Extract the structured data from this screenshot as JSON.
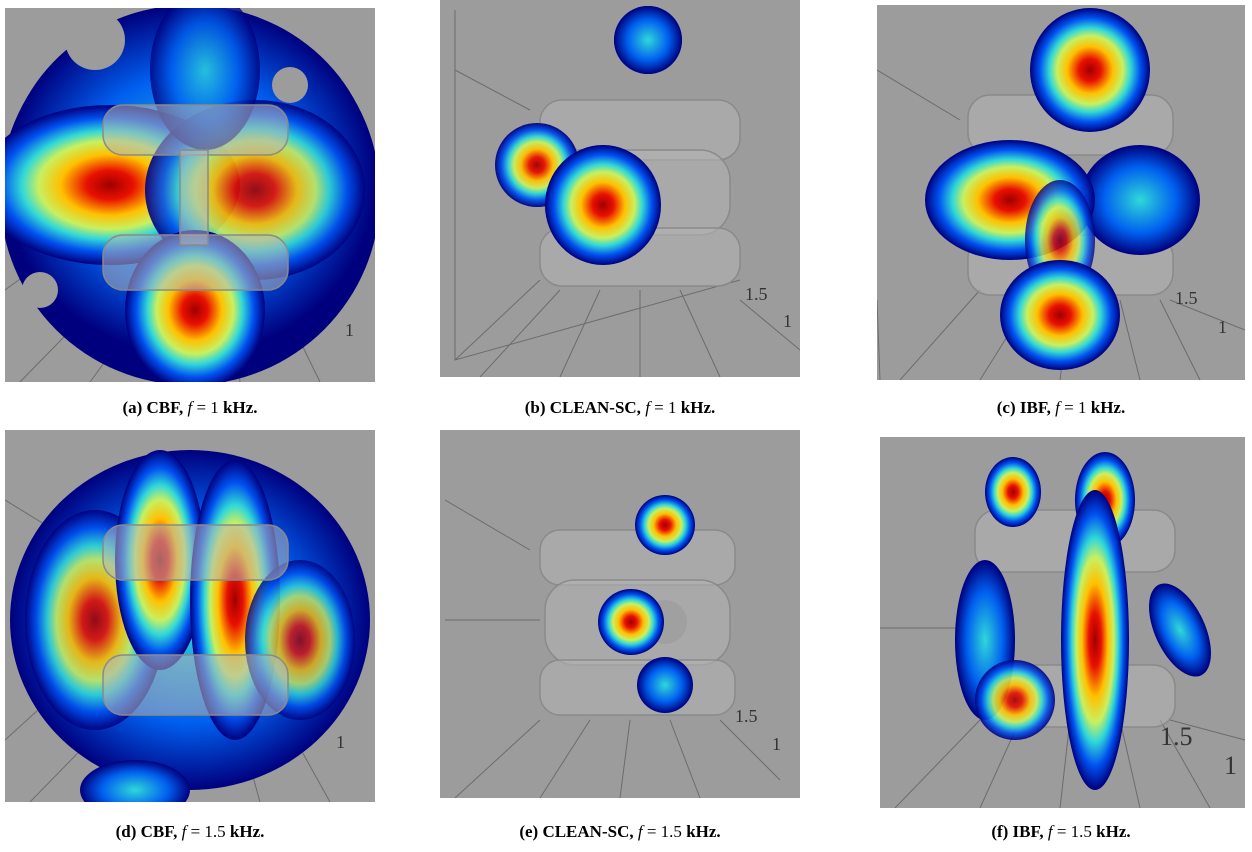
{
  "panels": [
    {
      "label": "(a) CBF,",
      "symbol": "f",
      "equals": "= 1",
      "unit": "kHz.",
      "axis_labels": [
        "1"
      ]
    },
    {
      "label": "(b) CLEAN-SC,",
      "symbol": "f",
      "equals": "= 1",
      "unit": "kHz.",
      "axis_labels": [
        "1.5",
        "1"
      ]
    },
    {
      "label": "(c) IBF,",
      "symbol": "f",
      "equals": "= 1",
      "unit": "kHz.",
      "axis_labels": [
        "1.5",
        "1"
      ]
    },
    {
      "label": "(d) CBF,",
      "symbol": "f",
      "equals": "= 1.5",
      "unit": "kHz.",
      "axis_labels": [
        "1"
      ]
    },
    {
      "label": "(e) CLEAN-SC,",
      "symbol": "f",
      "equals": "= 1.5",
      "unit": "kHz.",
      "axis_labels": [
        "1.5",
        "1"
      ]
    },
    {
      "label": "(f) IBF,",
      "symbol": "f",
      "equals": "= 1.5",
      "unit": "kHz.",
      "axis_labels": [
        "1.5",
        "1"
      ]
    }
  ]
}
